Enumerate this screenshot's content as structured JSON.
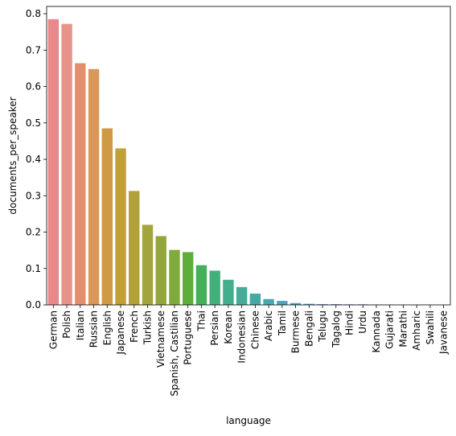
{
  "chart_data": {
    "type": "bar",
    "title": "",
    "xlabel": "language",
    "ylabel": "documents_per_speaker",
    "ylim": [
      0,
      0.82
    ],
    "yticks": [
      "0.0",
      "0.1",
      "0.2",
      "0.3",
      "0.4",
      "0.5",
      "0.6",
      "0.7",
      "0.8"
    ],
    "grid": false,
    "legend": "none",
    "categories": [
      "German",
      "Polish",
      "Italian",
      "Russian",
      "English",
      "Japanese",
      "French",
      "Turkish",
      "Vietnamese",
      "Spanish, Castilian",
      "Portuguese",
      "Thai",
      "Persian",
      "Korean",
      "Indonesian",
      "Chinese",
      "Arabic",
      "Tamil",
      "Burmese",
      "Bengali",
      "Telugu",
      "Tagalog",
      "Hindi",
      "Urdu",
      "Kannada",
      "Gujarati",
      "Marathi",
      "Amharic",
      "Swahili",
      "Javanese"
    ],
    "values": [
      0.785,
      0.772,
      0.664,
      0.648,
      0.485,
      0.43,
      0.313,
      0.22,
      0.189,
      0.151,
      0.145,
      0.109,
      0.094,
      0.069,
      0.049,
      0.031,
      0.016,
      0.011,
      0.005,
      0.003,
      0.002,
      0.002,
      0.0015,
      0.0015,
      0.001,
      0.0005,
      0.0005,
      0.0005,
      0.0003,
      0.0003
    ],
    "colors": [
      "#e8888a",
      "#e8938a",
      "#e38f6d",
      "#d9975a",
      "#cf9a43",
      "#c19f3a",
      "#b2a03a",
      "#a3a43b",
      "#92a63c",
      "#7faa3c",
      "#5fae3c",
      "#44b05a",
      "#43b07a",
      "#43ae8c",
      "#44ac99",
      "#45aaa5",
      "#45aab0",
      "#47a8bd",
      "#4ba4cc",
      "#5aa0d8",
      "#7198e2",
      "#878fe6",
      "#9a88e8",
      "#ad80e8",
      "#bf78e5",
      "#d071e0",
      "#dd6fd2",
      "#e172c0",
      "#e579ad",
      "#e6829b"
    ]
  }
}
